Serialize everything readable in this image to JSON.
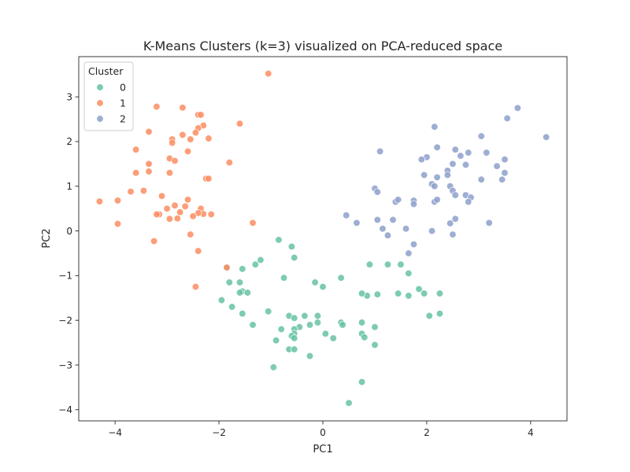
{
  "chart_data": {
    "type": "scatter",
    "title": "K-Means Clusters (k=3) visualized on PCA-reduced space",
    "xlabel": "PC1",
    "ylabel": "PC2",
    "xlim": [
      -4.7,
      4.7
    ],
    "ylim": [
      -4.25,
      3.9
    ],
    "xticks": [
      -4,
      -2,
      0,
      2,
      4
    ],
    "yticks": [
      -4,
      -3,
      -2,
      -1,
      0,
      1,
      2,
      3
    ],
    "grid": false,
    "legend": {
      "title": "Cluster",
      "placement": "top-left"
    },
    "series": [
      {
        "name": "0",
        "color": "#66c2a5",
        "points": [
          [
            -0.85,
            -0.2
          ],
          [
            -0.6,
            -0.35
          ],
          [
            -0.55,
            -0.6
          ],
          [
            -0.75,
            -1.05
          ],
          [
            -1.2,
            -0.65
          ],
          [
            -1.3,
            -0.75
          ],
          [
            -1.55,
            -0.85
          ],
          [
            -1.85,
            -0.82
          ],
          [
            -1.8,
            -1.15
          ],
          [
            -1.6,
            -1.15
          ],
          [
            -1.55,
            -1.35
          ],
          [
            -1.45,
            -1.38
          ],
          [
            -1.6,
            -1.38
          ],
          [
            -1.95,
            -1.55
          ],
          [
            -1.75,
            -1.7
          ],
          [
            -1.55,
            -1.85
          ],
          [
            -1.35,
            -2.1
          ],
          [
            -1.05,
            -1.8
          ],
          [
            -0.65,
            -1.9
          ],
          [
            -0.55,
            -1.95
          ],
          [
            -0.35,
            -1.9
          ],
          [
            -0.1,
            -1.9
          ],
          [
            -0.25,
            -2.1
          ],
          [
            -0.45,
            -2.15
          ],
          [
            -0.55,
            -2.2
          ],
          [
            -0.8,
            -2.2
          ],
          [
            -0.55,
            -2.3
          ],
          [
            -0.6,
            -2.35
          ],
          [
            -0.55,
            -2.4
          ],
          [
            -0.9,
            -2.45
          ],
          [
            -0.65,
            -2.65
          ],
          [
            -0.55,
            -2.65
          ],
          [
            -0.25,
            -2.8
          ],
          [
            -0.95,
            -3.05
          ],
          [
            -0.1,
            -2.05
          ],
          [
            0.05,
            -2.3
          ],
          [
            0.2,
            -2.4
          ],
          [
            0.35,
            -2.05
          ],
          [
            0.38,
            -2.1
          ],
          [
            0.75,
            -2.3
          ],
          [
            0.8,
            -2.38
          ],
          [
            0.75,
            -2.05
          ],
          [
            1.0,
            -2.55
          ],
          [
            1.0,
            -2.15
          ],
          [
            0.75,
            -3.38
          ],
          [
            0.5,
            -3.85
          ],
          [
            0.35,
            -1.05
          ],
          [
            0.9,
            -0.75
          ],
          [
            1.25,
            -0.75
          ],
          [
            1.5,
            -0.75
          ],
          [
            1.65,
            -0.95
          ],
          [
            1.85,
            -1.3
          ],
          [
            1.95,
            -1.4
          ],
          [
            2.25,
            -1.4
          ],
          [
            1.65,
            -1.45
          ],
          [
            1.45,
            -1.4
          ],
          [
            1.05,
            -1.42
          ],
          [
            0.85,
            -1.45
          ],
          [
            0.75,
            -1.4
          ],
          [
            0.0,
            -1.25
          ],
          [
            -0.15,
            -1.15
          ],
          [
            2.05,
            -1.9
          ],
          [
            2.25,
            -1.85
          ]
        ]
      },
      {
        "name": "1",
        "color": "#fc8d62",
        "points": [
          [
            -1.05,
            3.52
          ],
          [
            -3.2,
            2.78
          ],
          [
            -2.7,
            2.76
          ],
          [
            -2.4,
            2.6
          ],
          [
            -2.35,
            2.6
          ],
          [
            -2.3,
            2.36
          ],
          [
            -2.4,
            2.3
          ],
          [
            -2.45,
            2.2
          ],
          [
            -2.7,
            2.15
          ],
          [
            -2.55,
            2.05
          ],
          [
            -2.9,
            2.05
          ],
          [
            -2.9,
            1.97
          ],
          [
            -2.2,
            2.07
          ],
          [
            -1.6,
            2.4
          ],
          [
            -3.35,
            2.22
          ],
          [
            -3.6,
            1.82
          ],
          [
            -2.6,
            1.78
          ],
          [
            -2.95,
            1.62
          ],
          [
            -3.35,
            1.5
          ],
          [
            -2.85,
            1.57
          ],
          [
            -1.8,
            1.53
          ],
          [
            -3.6,
            1.3
          ],
          [
            -3.35,
            1.33
          ],
          [
            -2.95,
            1.3
          ],
          [
            -2.25,
            1.17
          ],
          [
            -2.2,
            1.17
          ],
          [
            -3.1,
            0.78
          ],
          [
            -3.45,
            0.9
          ],
          [
            -3.7,
            0.88
          ],
          [
            -3.95,
            0.68
          ],
          [
            -4.3,
            0.66
          ],
          [
            -2.6,
            0.7
          ],
          [
            -2.85,
            0.57
          ],
          [
            -3.0,
            0.5
          ],
          [
            -2.65,
            0.55
          ],
          [
            -2.35,
            0.5
          ],
          [
            -2.15,
            0.37
          ],
          [
            -2.3,
            0.38
          ],
          [
            -2.4,
            0.4
          ],
          [
            -2.75,
            0.42
          ],
          [
            -3.15,
            0.37
          ],
          [
            -3.2,
            0.37
          ],
          [
            -2.95,
            0.27
          ],
          [
            -2.8,
            0.28
          ],
          [
            -2.5,
            0.33
          ],
          [
            -1.35,
            0.18
          ],
          [
            -3.95,
            0.16
          ],
          [
            -2.55,
            -0.08
          ],
          [
            -3.25,
            -0.23
          ],
          [
            -2.4,
            -0.45
          ],
          [
            -1.85,
            -0.82
          ],
          [
            -2.45,
            -1.25
          ]
        ]
      },
      {
        "name": "2",
        "color": "#8da0cb",
        "points": [
          [
            3.75,
            2.75
          ],
          [
            3.55,
            2.52
          ],
          [
            2.15,
            2.33
          ],
          [
            3.05,
            2.12
          ],
          [
            4.3,
            2.1
          ],
          [
            2.2,
            1.87
          ],
          [
            2.55,
            1.82
          ],
          [
            2.8,
            1.75
          ],
          [
            3.15,
            1.75
          ],
          [
            1.1,
            1.78
          ],
          [
            2.65,
            1.68
          ],
          [
            2.0,
            1.65
          ],
          [
            1.9,
            1.6
          ],
          [
            3.5,
            1.6
          ],
          [
            2.5,
            1.5
          ],
          [
            2.75,
            1.48
          ],
          [
            3.35,
            1.45
          ],
          [
            2.4,
            1.35
          ],
          [
            1.95,
            1.25
          ],
          [
            2.4,
            1.25
          ],
          [
            3.5,
            1.3
          ],
          [
            2.2,
            1.2
          ],
          [
            3.05,
            1.15
          ],
          [
            3.45,
            1.15
          ],
          [
            2.1,
            1.05
          ],
          [
            2.15,
            1.0
          ],
          [
            2.45,
            1.0
          ],
          [
            2.5,
            0.9
          ],
          [
            1.0,
            0.95
          ],
          [
            1.05,
            0.87
          ],
          [
            2.55,
            0.8
          ],
          [
            2.75,
            0.8
          ],
          [
            2.85,
            0.75
          ],
          [
            2.15,
            0.65
          ],
          [
            2.2,
            0.7
          ],
          [
            1.4,
            0.65
          ],
          [
            1.45,
            0.7
          ],
          [
            1.75,
            0.68
          ],
          [
            1.75,
            0.6
          ],
          [
            2.8,
            0.65
          ],
          [
            2.55,
            0.27
          ],
          [
            2.45,
            0.17
          ],
          [
            3.2,
            0.18
          ],
          [
            1.05,
            0.25
          ],
          [
            1.35,
            0.25
          ],
          [
            0.45,
            0.35
          ],
          [
            0.65,
            0.18
          ],
          [
            1.15,
            0.05
          ],
          [
            1.6,
            0.05
          ],
          [
            2.1,
            0.0
          ],
          [
            2.5,
            -0.08
          ],
          [
            1.25,
            -0.1
          ],
          [
            1.75,
            -0.3
          ],
          [
            1.65,
            -0.5
          ]
        ]
      }
    ]
  }
}
